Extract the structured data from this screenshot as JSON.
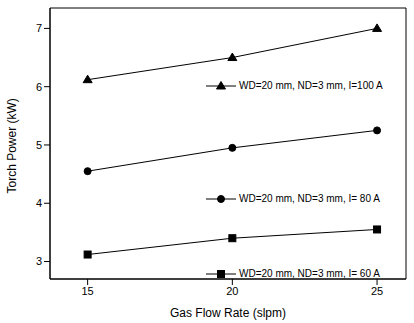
{
  "chart_data": {
    "type": "line",
    "x_label": "Gas Flow Rate (slpm)",
    "y_label": "Torch Power (kW)",
    "x": [
      15,
      20,
      25
    ],
    "xlim": [
      13.7,
      26
    ],
    "xticks": [
      15,
      20,
      25
    ],
    "ylim": [
      2.7,
      7.35
    ],
    "yticks": [
      3,
      4,
      5,
      6,
      7
    ],
    "grid": false,
    "series": [
      {
        "name": "WD=20 mm, ND=3 mm, I=100 A",
        "color": "#000000",
        "marker": "triangle",
        "line_style": "solid",
        "values": [
          6.12,
          6.5,
          7.0
        ]
      },
      {
        "name": "WD=20 mm, ND=3 mm, I= 80 A",
        "color": "#000000",
        "marker": "circle",
        "line_style": "solid",
        "values": [
          4.55,
          4.95,
          5.25
        ]
      },
      {
        "name": "WD=20 mm, ND=3 mm, I= 60 A",
        "color": "#000000",
        "marker": "square",
        "line_style": "solid",
        "values": [
          3.12,
          3.4,
          3.55
        ]
      }
    ]
  }
}
